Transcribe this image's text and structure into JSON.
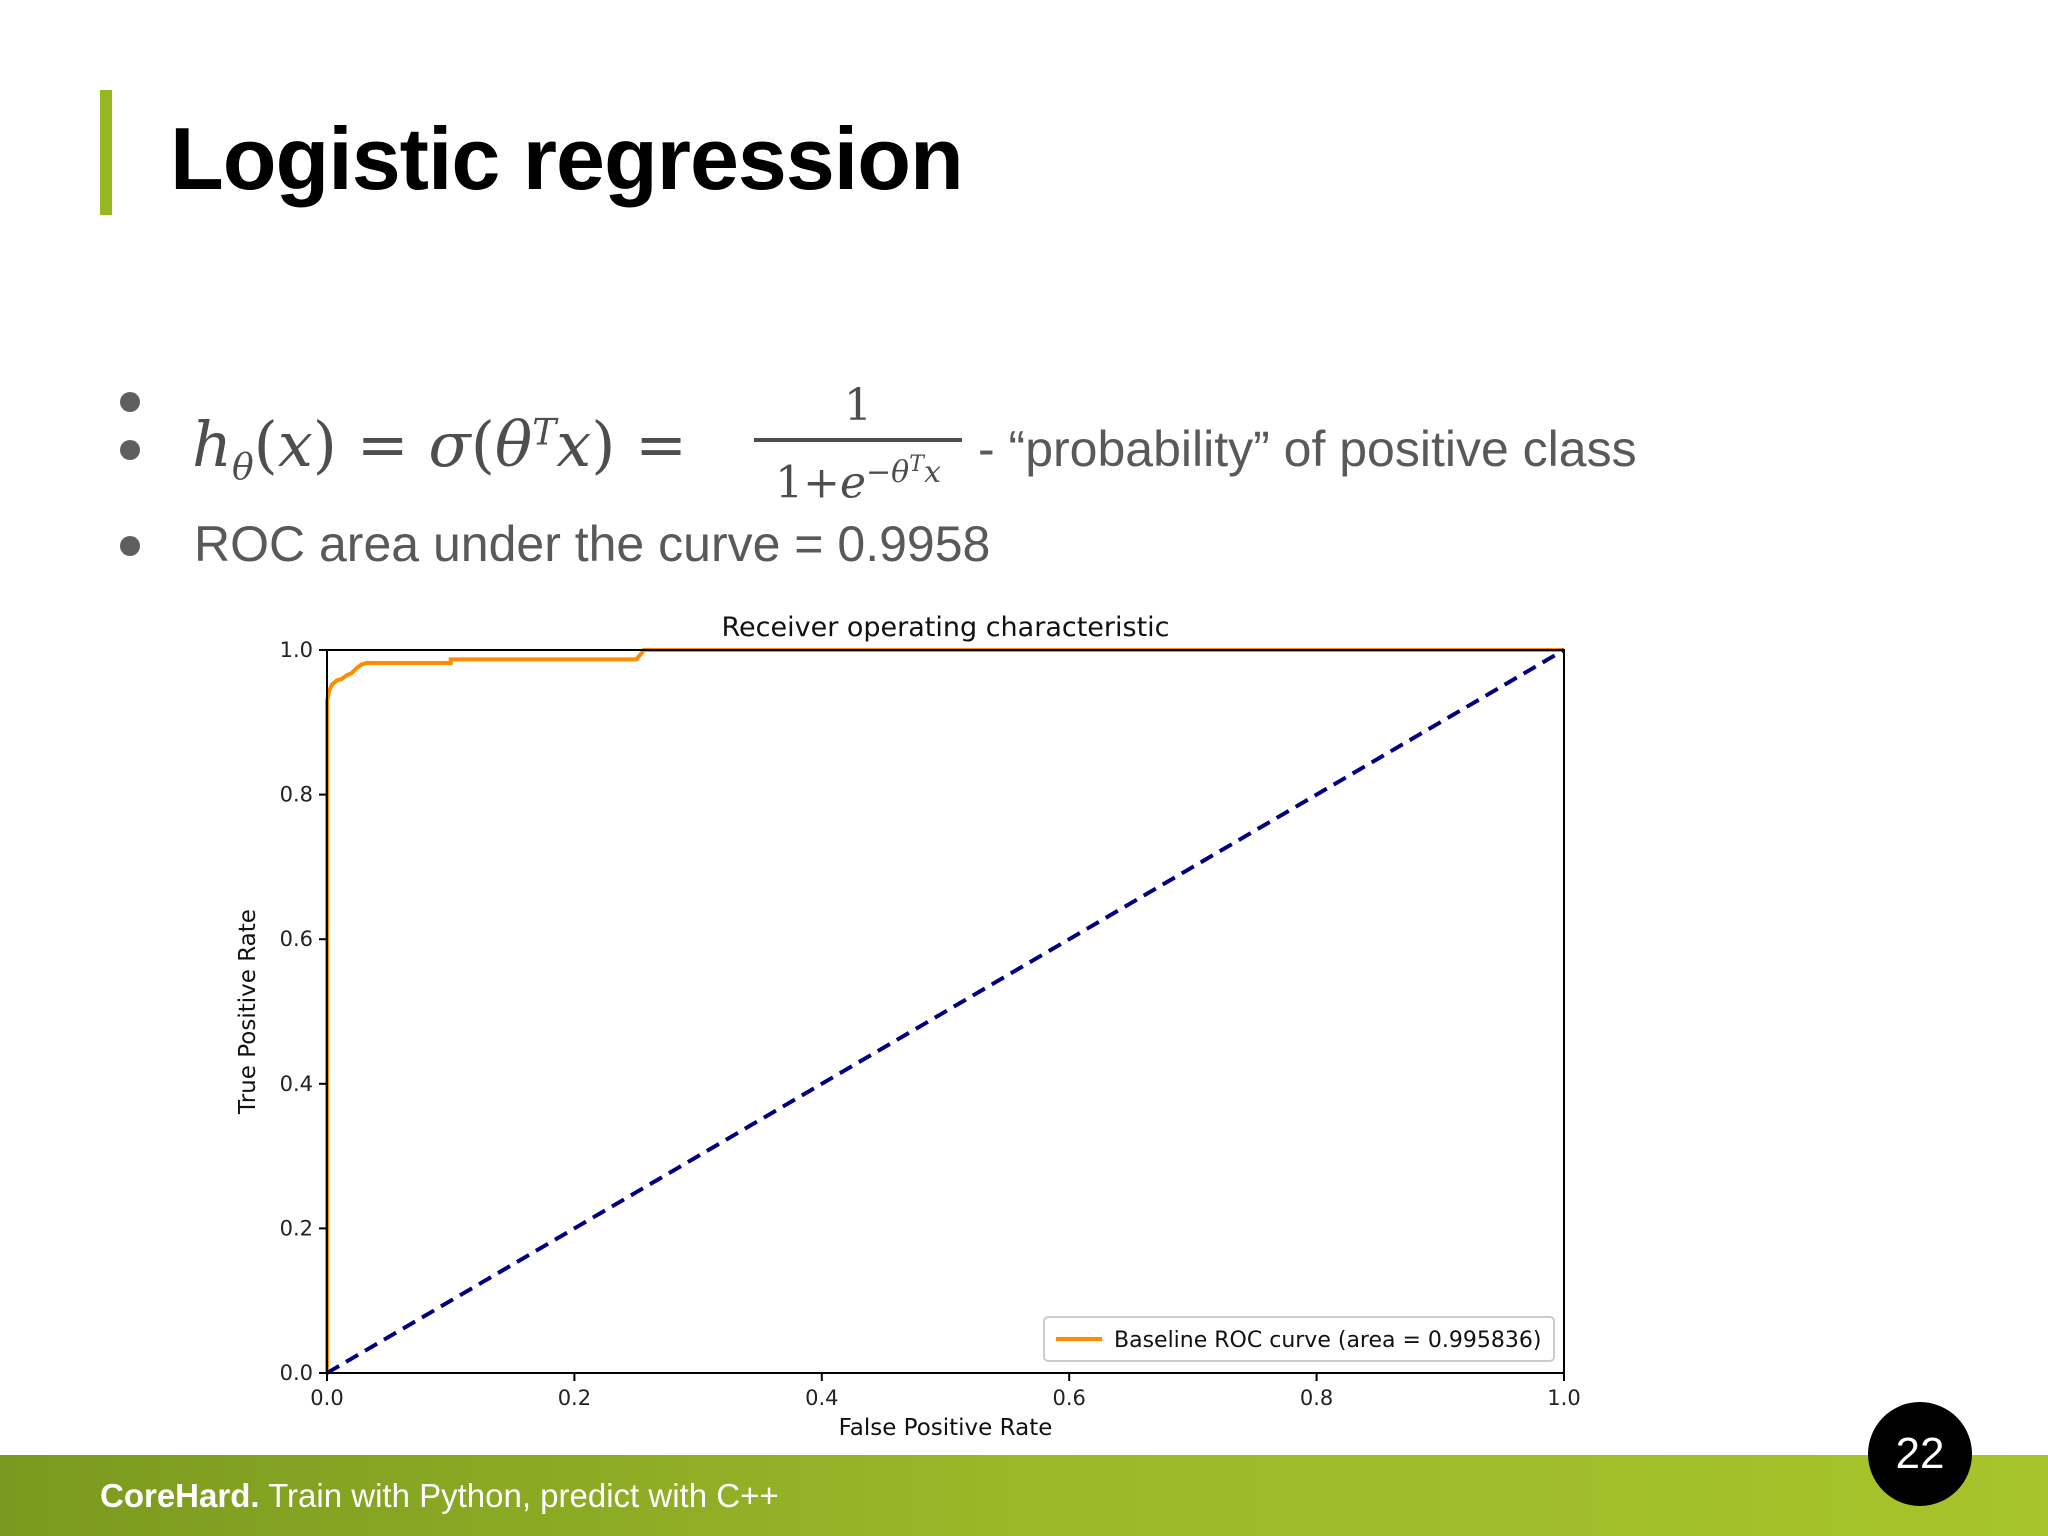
{
  "slide": {
    "title": "Logistic regression",
    "accent_color": "#95b820",
    "page_number": "22"
  },
  "bullets": {
    "formula_suffix": "- “probability” of positive class",
    "roc_text": "ROC area under the curve = 0.9958"
  },
  "formula": {
    "numerator": "1"
  },
  "footer": {
    "brand": "CoreHard.",
    "tagline": "Train with Python, predict with C++"
  },
  "chart_data": {
    "type": "line",
    "title": "Receiver operating characteristic",
    "xlabel": "False Positive Rate",
    "ylabel": "True Positive Rate",
    "xlim": [
      0.0,
      1.0
    ],
    "ylim": [
      0.0,
      1.0
    ],
    "xticks": [
      "0.0",
      "0.2",
      "0.4",
      "0.6",
      "0.8",
      "1.0"
    ],
    "yticks": [
      "0.0",
      "0.2",
      "0.4",
      "0.6",
      "0.8",
      "1.0"
    ],
    "grid": false,
    "legend_position": "lower-right",
    "series": [
      {
        "name": "Baseline ROC curve (area = 0.995836)",
        "color": "#ff8c00",
        "style": "solid",
        "x": [
          0.0,
          0.0,
          0.002,
          0.004,
          0.006,
          0.008,
          0.012,
          0.016,
          0.02,
          0.024,
          0.028,
          0.032,
          0.1,
          0.1,
          0.25,
          0.254,
          0.256,
          1.0
        ],
        "y": [
          0.0,
          0.93,
          0.945,
          0.952,
          0.955,
          0.958,
          0.96,
          0.965,
          0.968,
          0.975,
          0.98,
          0.982,
          0.982,
          0.987,
          0.987,
          0.995,
          1.0,
          1.0
        ]
      },
      {
        "color": "#000080",
        "style": "dashed",
        "x": [
          0.0,
          1.0
        ],
        "y": [
          0.0,
          1.0
        ]
      }
    ]
  }
}
